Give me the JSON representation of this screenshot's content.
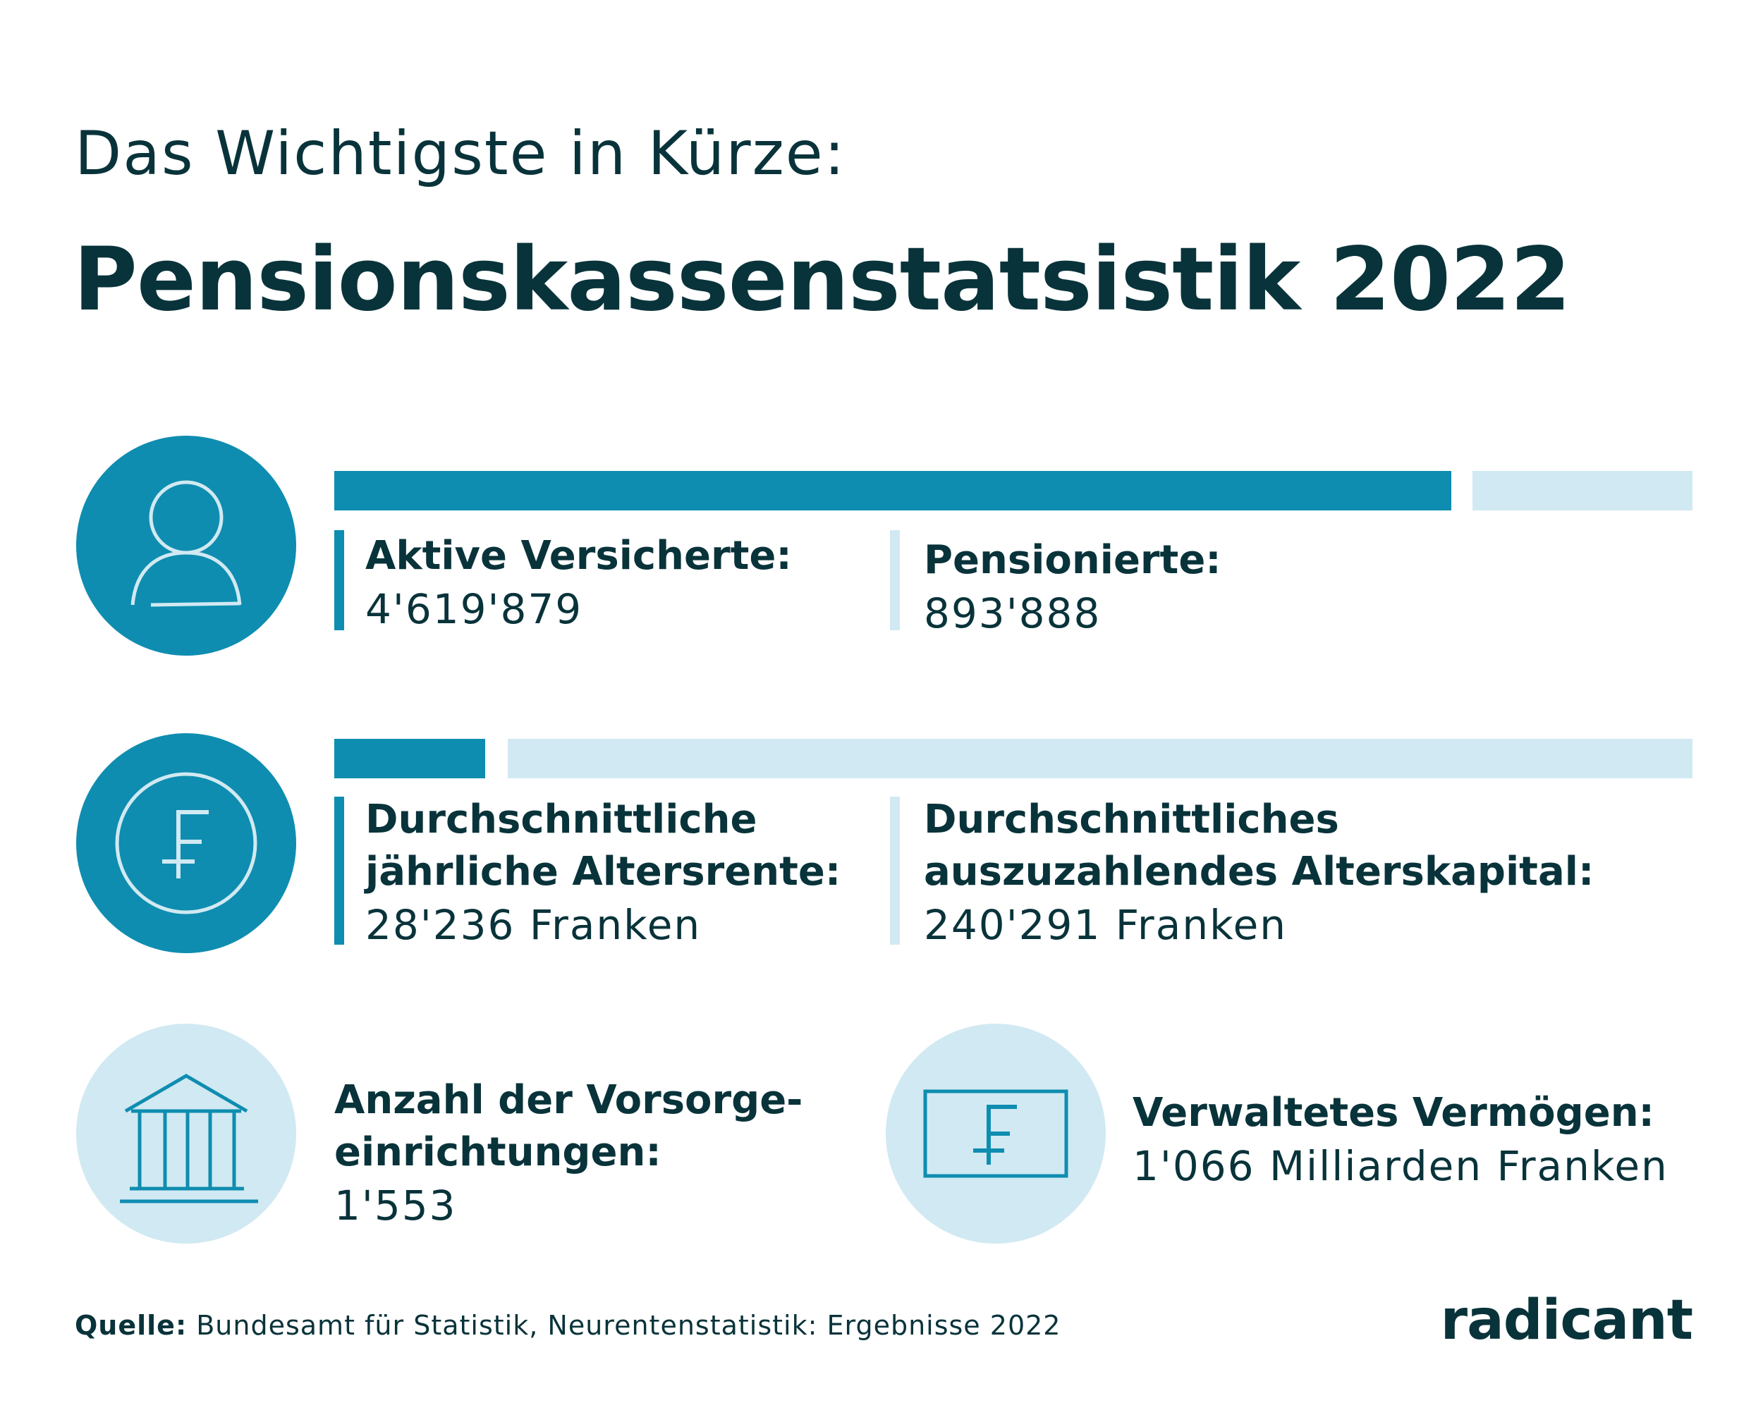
{
  "header": {
    "subtitle": "Das Wichtigste in Kürze:",
    "title": "Pensionskassenstatsistik 2022"
  },
  "row1": {
    "icon": "person-icon",
    "left": {
      "label": "Aktive Versicherte:",
      "value": "4'619'879"
    },
    "right": {
      "label": "Pensionierte:",
      "value": "893'888"
    }
  },
  "row2": {
    "icon": "franc-coin-icon",
    "left": {
      "label_line1": "Durchschnittliche",
      "label_line2": "jährliche Altersrente:",
      "value": "28'236 Franken"
    },
    "right": {
      "label_line1": "Durchschnittliches",
      "label_line2": "auszuzahlendes Alterskapital:",
      "value": "240'291 Franken"
    }
  },
  "row3": {
    "left": {
      "icon": "bank-building-icon",
      "label_line1": "Anzahl der Vorsorge-",
      "label_line2": "einrichtungen:",
      "value": "1'553"
    },
    "right": {
      "icon": "franc-banknote-icon",
      "label": "Verwaltetes Vermögen:",
      "value": "1'066 Milliarden Franken"
    }
  },
  "footer": {
    "source_label": "Quelle:",
    "source_text": " Bundesamt für Statistik, Neurentenstatistik: Ergebnisse 2022",
    "logo": "radicant"
  },
  "colors": {
    "dark": "#0e8db0",
    "light": "#d1e9f2",
    "text": "#09333a"
  }
}
